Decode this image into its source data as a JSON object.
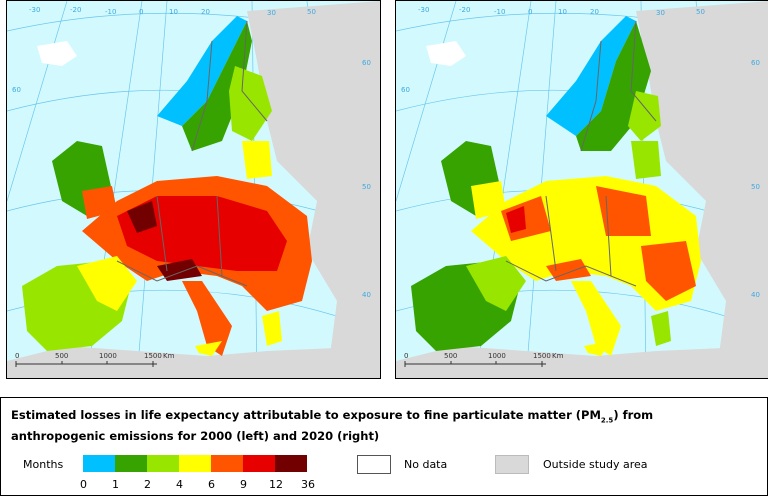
{
  "maps": [
    {
      "name": "2000 (left)",
      "graticule_labels": [
        "-30",
        "-20",
        "-10",
        "0",
        "10",
        "20",
        "30",
        "40",
        "50",
        "60",
        "60",
        "50",
        "40"
      ]
    },
    {
      "name": "2020 (right)",
      "graticule_labels": [
        "-30",
        "-20",
        "-10",
        "0",
        "10",
        "20",
        "30",
        "40",
        "50",
        "60",
        "60",
        "50",
        "40"
      ]
    }
  ],
  "scale_bar": {
    "labels": [
      "0",
      "500",
      "1000",
      "1500"
    ],
    "unit": "Km"
  },
  "legend": {
    "title_main": "Estimated losses in life expectancy attributable to exposure to fine particulate matter (PM",
    "title_sub": "2.5",
    "title_end": ") from anthropogenic emissions for 2000 (left) and 2020 (right)",
    "months_label": "Months",
    "classes": [
      {
        "color": "#00c0ff"
      },
      {
        "color": "#37a300"
      },
      {
        "color": "#98e600"
      },
      {
        "color": "#ffff00"
      },
      {
        "color": "#ff5500"
      },
      {
        "color": "#e60000"
      },
      {
        "color": "#730000"
      }
    ],
    "breaks": [
      "0",
      "1",
      "2",
      "4",
      "6",
      "9",
      "12",
      "36"
    ],
    "no_data": "No data",
    "outside": "Outside study area",
    "no_data_color": "#ffffff",
    "outside_color": "#d9d9d9"
  }
}
